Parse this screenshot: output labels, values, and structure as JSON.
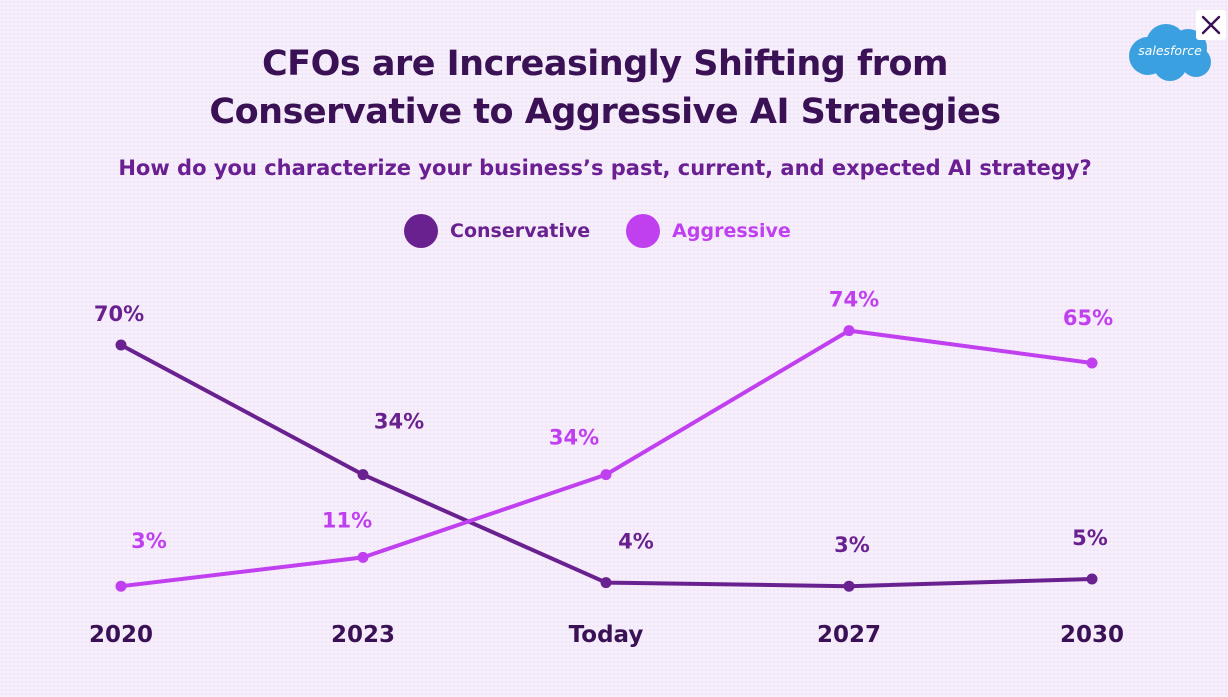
{
  "header": {
    "title_line1": "CFOs are Increasingly Shifting from",
    "title_line2": "Conservative to Aggressive AI Strategies",
    "subtitle": "How do you characterize your business’s past, current, and expected AI strategy?"
  },
  "brand": {
    "logo_text": "salesforce",
    "logo_color": "#3aa0e0"
  },
  "close": {
    "icon": "close-icon"
  },
  "colors": {
    "conservative": "#6a2190",
    "aggressive": "#c040f0",
    "axis_text": "#3a1155"
  },
  "legend": {
    "position": "top-center",
    "items": [
      {
        "label": "Conservative",
        "color": "#6a2190"
      },
      {
        "label": "Aggressive",
        "color": "#c040f0"
      }
    ]
  },
  "chart_data": {
    "type": "line",
    "title": "CFOs are Increasingly Shifting from Conservative to Aggressive AI Strategies",
    "subtitle": "How do you characterize your business’s past, current, and expected AI strategy?",
    "xlabel": "",
    "ylabel": "",
    "categories": [
      "2020",
      "2023",
      "Today",
      "2027",
      "2030"
    ],
    "ylim": [
      0,
      80
    ],
    "grid": false,
    "series": [
      {
        "name": "Conservative",
        "color": "#6a2190",
        "values": [
          70,
          34,
          4,
          3,
          5
        ],
        "labels": [
          "70%",
          "34%",
          "4%",
          "3%",
          "5%"
        ]
      },
      {
        "name": "Aggressive",
        "color": "#c040f0",
        "values": [
          3,
          11,
          34,
          74,
          65
        ],
        "labels": [
          "3%",
          "11%",
          "34%",
          "74%",
          "65%"
        ]
      }
    ]
  }
}
